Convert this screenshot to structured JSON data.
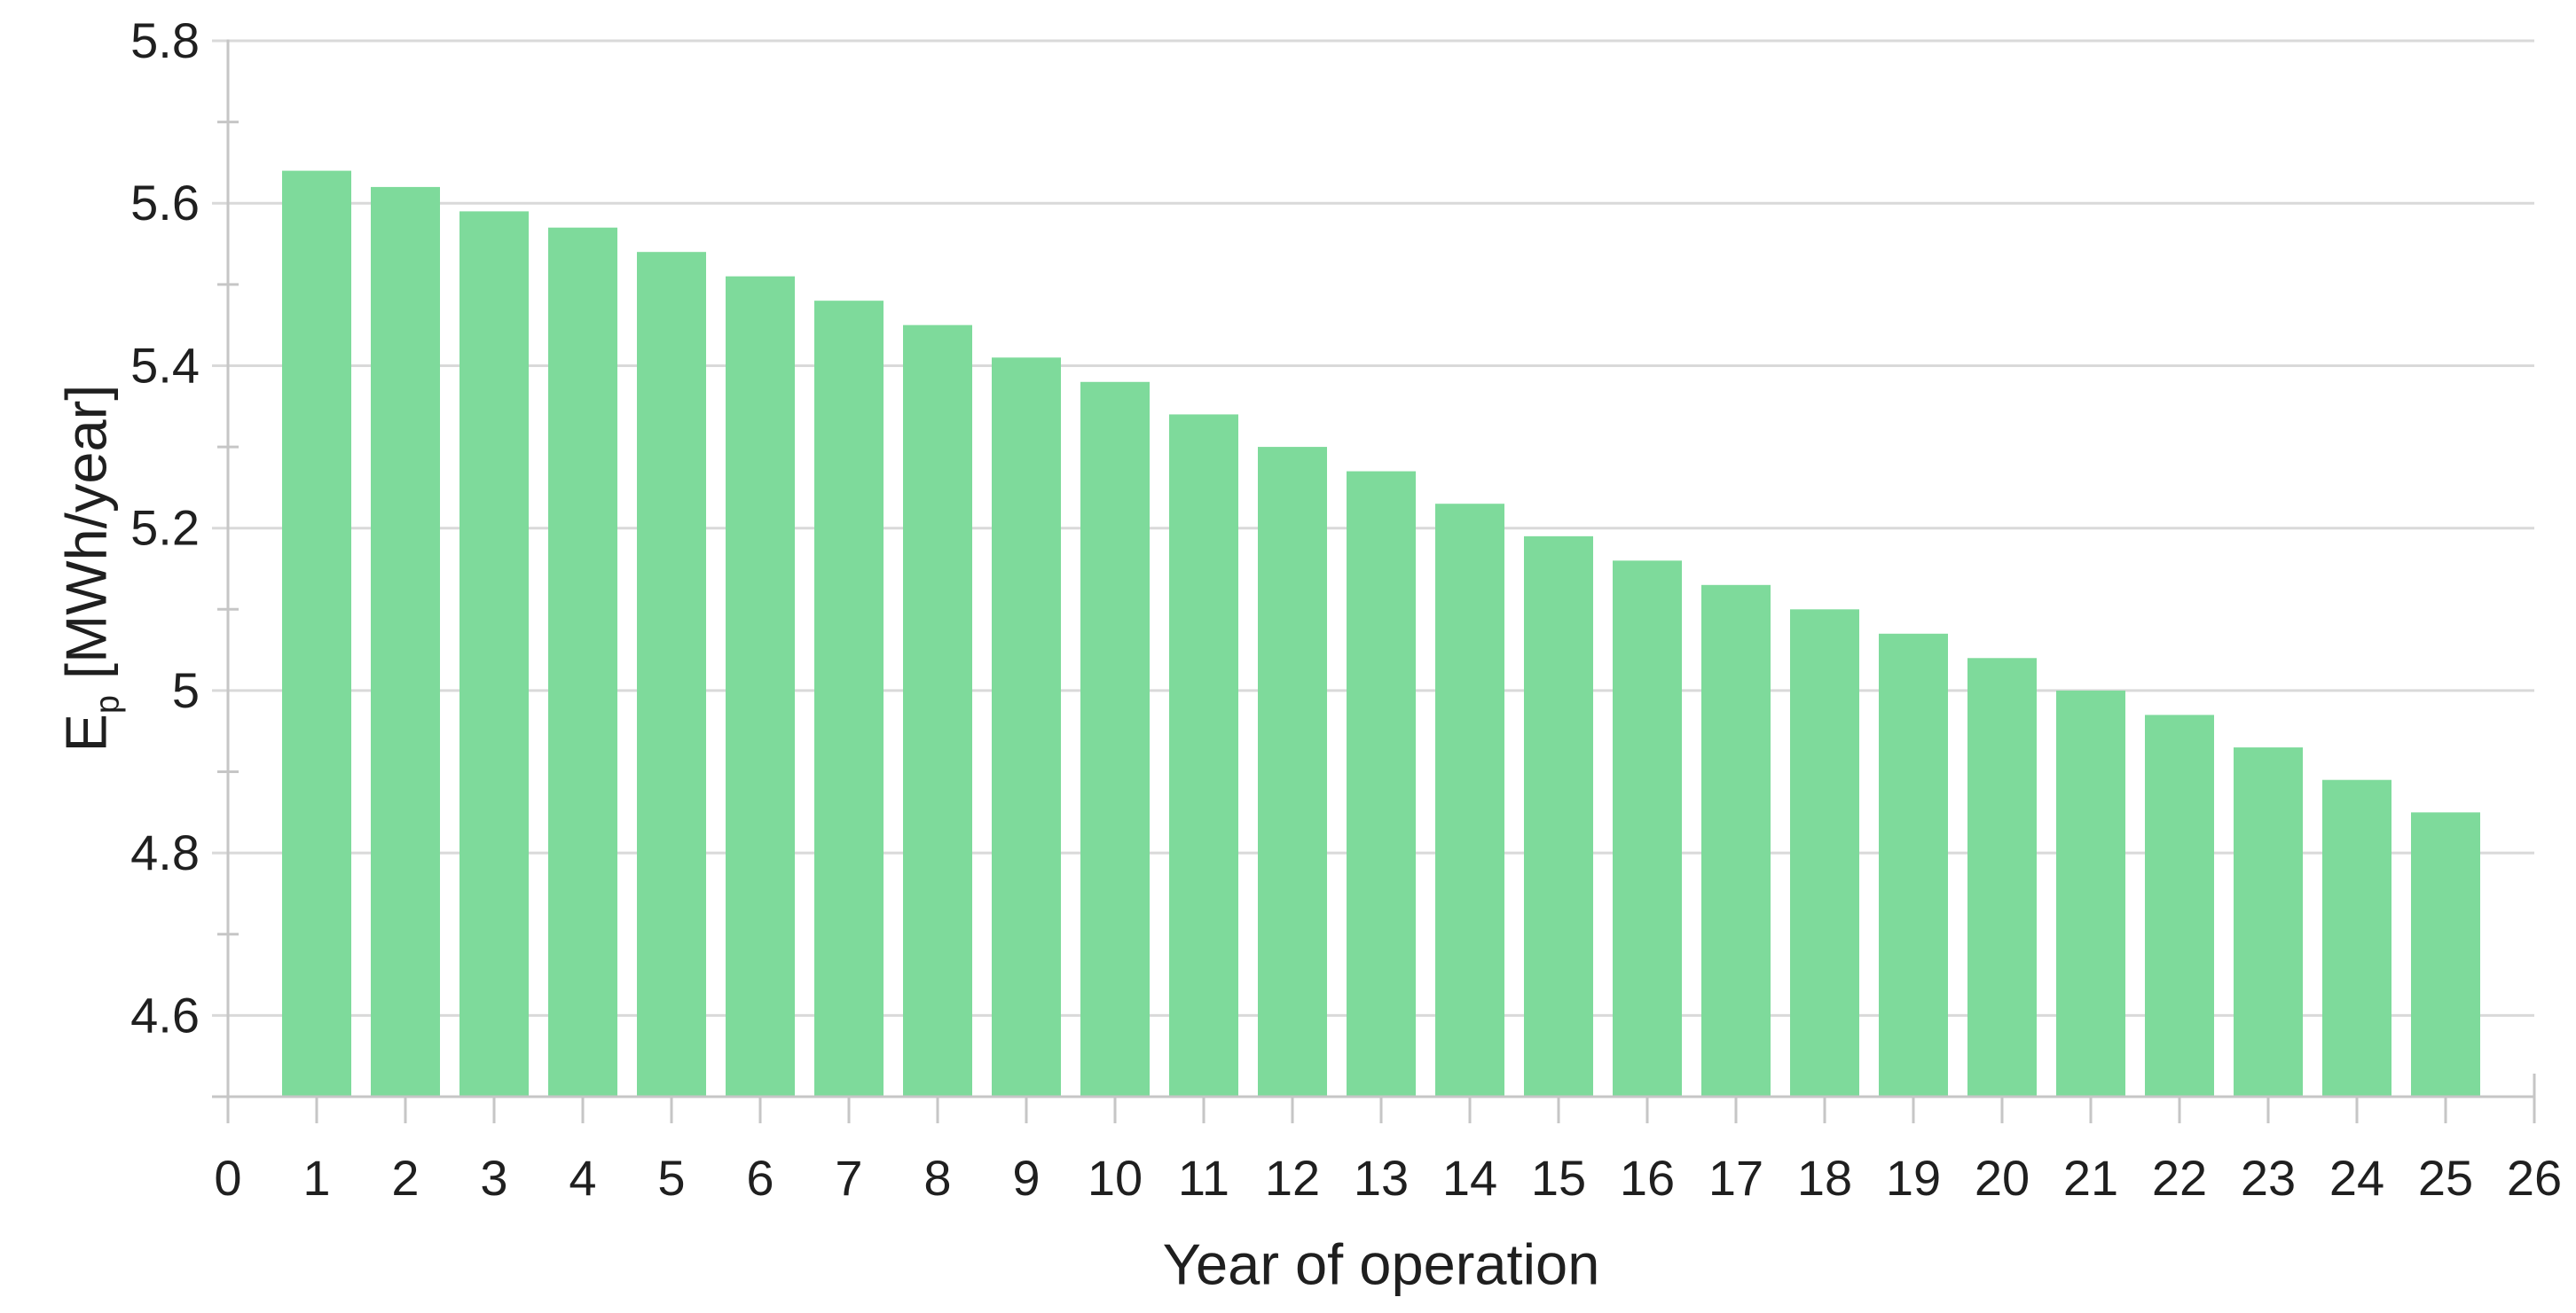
{
  "chart_data": {
    "type": "bar",
    "title": "",
    "xlabel": "Year of operation",
    "ylabel": {
      "symbol": "E",
      "subscript": "p",
      "unit": " [MWh/year]"
    },
    "categories": [
      1,
      2,
      3,
      4,
      5,
      6,
      7,
      8,
      9,
      10,
      11,
      12,
      13,
      14,
      15,
      16,
      17,
      18,
      19,
      20,
      21,
      22,
      23,
      24,
      25
    ],
    "values": [
      5.64,
      5.62,
      5.59,
      5.57,
      5.54,
      5.51,
      5.48,
      5.45,
      5.41,
      5.38,
      5.34,
      5.3,
      5.27,
      5.23,
      5.19,
      5.16,
      5.13,
      5.1,
      5.07,
      5.04,
      5.0,
      4.97,
      4.93,
      4.89,
      4.85
    ],
    "x_axis": {
      "min": 0,
      "max": 26,
      "tick_values": [
        0,
        1,
        2,
        3,
        4,
        5,
        6,
        7,
        8,
        9,
        10,
        11,
        12,
        13,
        14,
        15,
        16,
        17,
        18,
        19,
        20,
        21,
        22,
        23,
        24,
        25,
        26
      ],
      "tick_labels": [
        "0",
        "1",
        "2",
        "3",
        "4",
        "5",
        "6",
        "7",
        "8",
        "9",
        "10",
        "11",
        "12",
        "13",
        "14",
        "15",
        "16",
        "17",
        "18",
        "19",
        "20",
        "21",
        "22",
        "23",
        "24",
        "25",
        "26"
      ]
    },
    "y_axis": {
      "min": 4.5,
      "max": 5.8,
      "major_tick_values": [
        5.8,
        5.6,
        5.4,
        5.2,
        5.0,
        4.8,
        4.6
      ],
      "tick_labels": [
        "5.8",
        "5.6",
        "5.4",
        "5.2",
        "5",
        "4.8",
        "4.6"
      ],
      "minor_tick_values": [
        5.7,
        5.5,
        5.3,
        5.1,
        4.9,
        4.7
      ]
    },
    "grid": "horizontal-major",
    "legend": "none",
    "colors": {
      "bar": "#7EDA9B",
      "grid": "#D9D9D9",
      "axis": "#C6C6C6",
      "text": "#1F1F1F"
    }
  }
}
